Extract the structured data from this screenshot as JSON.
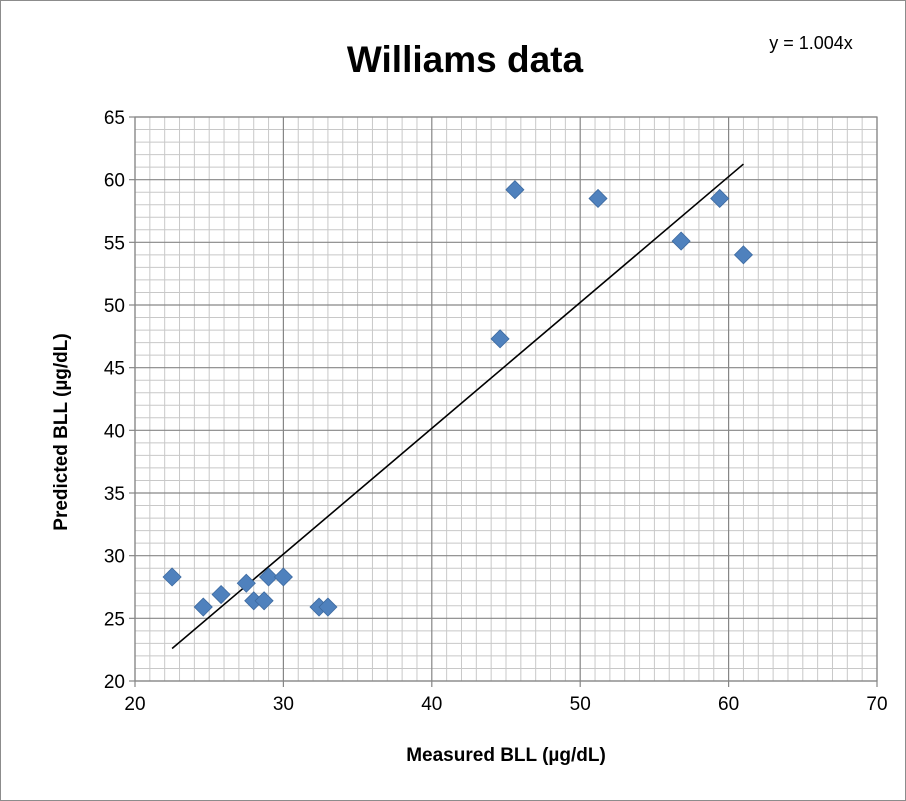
{
  "chart_data": {
    "type": "scatter",
    "title": "Williams data",
    "equation": "y = 1.004x",
    "xlabel": "Measured BLL (µg/dL)",
    "ylabel": "Predicted BLL (µg/dL)",
    "xlim": [
      20,
      70
    ],
    "ylim": [
      20,
      65
    ],
    "x_ticks": [
      20,
      30,
      40,
      50,
      60,
      70
    ],
    "y_ticks": [
      20,
      25,
      30,
      35,
      40,
      45,
      50,
      55,
      60,
      65
    ],
    "grid": true,
    "marker_color": "#4f81bd",
    "trendline": {
      "slope": 1.004,
      "x_range": [
        22.5,
        61
      ],
      "color": "#000000"
    },
    "series": [
      {
        "points": [
          [
            22.5,
            28.3
          ],
          [
            24.6,
            25.9
          ],
          [
            25.8,
            26.9
          ],
          [
            27.5,
            27.8
          ],
          [
            28.0,
            26.4
          ],
          [
            28.7,
            26.4
          ],
          [
            29.0,
            28.3
          ],
          [
            30.0,
            28.3
          ],
          [
            32.4,
            25.9
          ],
          [
            33.0,
            25.9
          ],
          [
            44.6,
            47.3
          ],
          [
            45.6,
            59.2
          ],
          [
            51.2,
            58.5
          ],
          [
            56.8,
            55.1
          ],
          [
            59.4,
            58.5
          ],
          [
            61.0,
            54.0
          ]
        ]
      }
    ]
  }
}
